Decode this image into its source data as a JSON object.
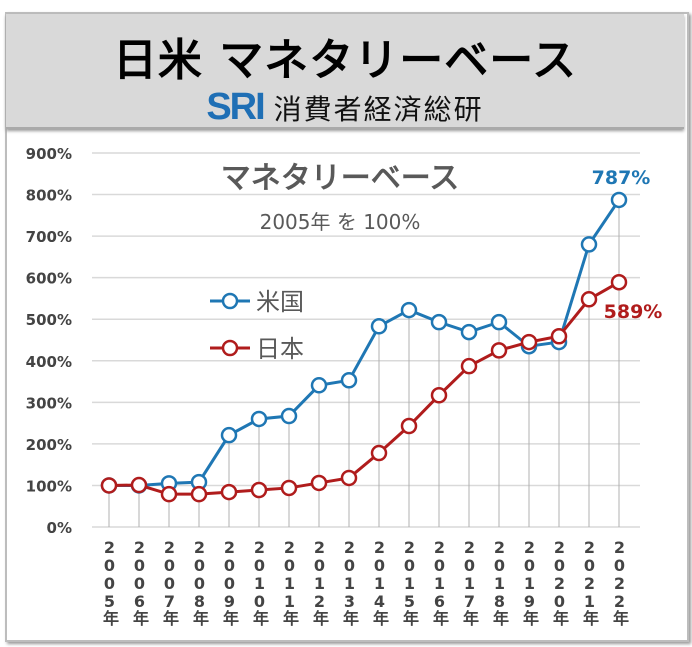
{
  "header": {
    "title": "日米 マネタリーベース",
    "logo_text": "SRI",
    "org": "消費者経済総研"
  },
  "colors": {
    "us": "#1f77b4",
    "jp": "#b01c1c",
    "grid": "#d9d9d9",
    "text": "#595959"
  },
  "chart_data": {
    "type": "line",
    "title": "マネタリーベース",
    "subtitle": "2005年 を 100%",
    "xlabel": "",
    "ylabel": "",
    "ylim": [
      0,
      900
    ],
    "yticks": [
      0,
      100,
      200,
      300,
      400,
      500,
      600,
      700,
      800,
      900
    ],
    "ytick_labels": [
      "0%",
      "100%",
      "200%",
      "300%",
      "400%",
      "500%",
      "600%",
      "700%",
      "800%",
      "900%"
    ],
    "categories": [
      "2005年",
      "2006年",
      "2007年",
      "2008年",
      "2009年",
      "2010年",
      "2011年",
      "2012年",
      "2013年",
      "2014年",
      "2015年",
      "2016年",
      "2017年",
      "2018年",
      "2019年",
      "2020年",
      "2021年",
      "2022年"
    ],
    "grid": true,
    "legend_position": "center-left",
    "series": [
      {
        "name": "米国",
        "values": [
          100,
          100,
          105,
          108,
          221,
          260,
          267,
          341,
          353,
          483,
          522,
          493,
          469,
          493,
          435,
          445,
          680,
          787
        ],
        "end_label": "787%"
      },
      {
        "name": "日本",
        "values": [
          100,
          101,
          79,
          79,
          84,
          89,
          94,
          106,
          118,
          178,
          243,
          317,
          387,
          425,
          445,
          459,
          548,
          589
        ],
        "end_label": "589%"
      }
    ]
  }
}
